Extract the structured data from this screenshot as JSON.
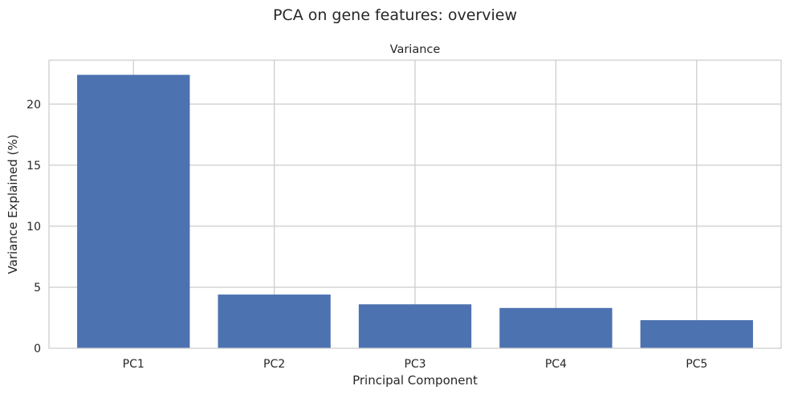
{
  "chart_data": {
    "type": "bar",
    "suptitle": "PCA on gene features: overview",
    "title": "Variance",
    "xlabel": "Principal Component",
    "ylabel": "Variance Explained (%)",
    "categories": [
      "PC1",
      "PC2",
      "PC3",
      "PC4",
      "PC5"
    ],
    "values": [
      22.4,
      4.4,
      3.6,
      3.3,
      2.3
    ],
    "ylim": [
      0,
      23.6
    ],
    "yticks": [
      0,
      5,
      10,
      15,
      20
    ],
    "grid": true,
    "bar_color": "#4c72b0",
    "grid_color": "#cccccc",
    "axis_color": "#cccccc"
  }
}
